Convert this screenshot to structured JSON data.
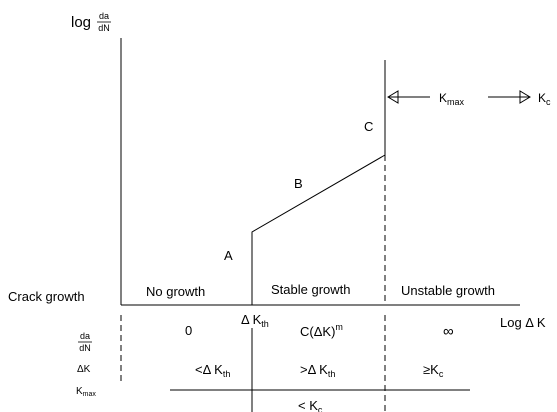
{
  "yaxis": {
    "log": "log",
    "frac_num": "da",
    "frac_den": "dN"
  },
  "xaxis": {
    "label": "Log Δ K"
  },
  "regions": {
    "row_label": "Crack growth",
    "no_growth": "No growth",
    "stable": "Stable growth",
    "unstable": "Unstable growth"
  },
  "points": {
    "a": "A",
    "b": "B",
    "c": "C"
  },
  "kmax_label": {
    "k": "K",
    "sub": "max"
  },
  "kc_label": {
    "k": "K",
    "sub": "c"
  },
  "threshold": {
    "prefix": "Δ K",
    "sub": "th"
  },
  "table": {
    "row1": {
      "num": "da",
      "den": "dN",
      "v1": "0",
      "v2": "C(ΔK)",
      "v2_sup": "m",
      "v3": "∞"
    },
    "row2": {
      "label": "ΔK",
      "v1": "<Δ K",
      "v1_sub": "th",
      "v2": ">Δ K",
      "v2_sub": "th",
      "v3": "≥K",
      "v3_sub": "c"
    },
    "row3": {
      "label": "K",
      "label_sub": "max",
      "v2": "< K",
      "v2_sub": "c"
    }
  }
}
